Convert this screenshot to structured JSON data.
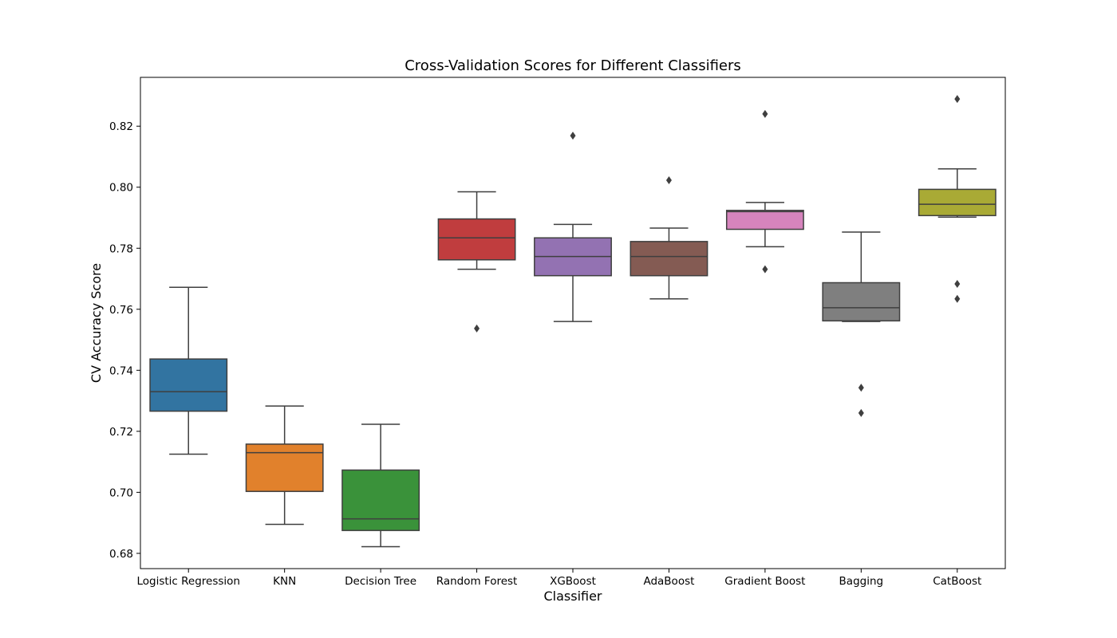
{
  "chart_data": {
    "type": "box",
    "title": "Cross-Validation Scores for Different Classifiers",
    "xlabel": "Classifier",
    "ylabel": "CV Accuracy Score",
    "ylim": [
      0.675,
      0.836
    ],
    "yticks": [
      "0.68",
      "0.70",
      "0.72",
      "0.74",
      "0.76",
      "0.78",
      "0.80",
      "0.82"
    ],
    "grid": false,
    "categories": [
      "Logistic Regression",
      "KNN",
      "Decision Tree",
      "Random Forest",
      "XGBoost",
      "AdaBoost",
      "Gradient Boost",
      "Bagging",
      "CatBoost"
    ],
    "series": [
      {
        "whisker_low": 0.7125,
        "q1": 0.7266,
        "median": 0.733,
        "q3": 0.7437,
        "whisker_high": 0.7672,
        "outliers": [],
        "color": "#3274a1"
      },
      {
        "whisker_low": 0.6895,
        "q1": 0.7003,
        "median": 0.713,
        "q3": 0.7158,
        "whisker_high": 0.7283,
        "outliers": [],
        "color": "#e1812c"
      },
      {
        "whisker_low": 0.6822,
        "q1": 0.6875,
        "median": 0.6913,
        "q3": 0.7073,
        "whisker_high": 0.7223,
        "outliers": [],
        "color": "#3a923a"
      },
      {
        "whisker_low": 0.7731,
        "q1": 0.7762,
        "median": 0.7834,
        "q3": 0.7896,
        "whisker_high": 0.7985,
        "outliers": [
          0.7537
        ],
        "color": "#c03d3e"
      },
      {
        "whisker_low": 0.756,
        "q1": 0.771,
        "median": 0.7773,
        "q3": 0.7834,
        "whisker_high": 0.7878,
        "outliers": [
          0.8169
        ],
        "color": "#9372b2"
      },
      {
        "whisker_low": 0.7634,
        "q1": 0.771,
        "median": 0.7773,
        "q3": 0.7822,
        "whisker_high": 0.7866,
        "outliers": [
          0.8023
        ],
        "color": "#845b53"
      },
      {
        "whisker_low": 0.7805,
        "q1": 0.7862,
        "median": 0.792,
        "q3": 0.7924,
        "whisker_high": 0.795,
        "outliers": [
          0.824,
          0.7731
        ],
        "color": "#d684bd"
      },
      {
        "whisker_low": 0.756,
        "q1": 0.7562,
        "median": 0.7605,
        "q3": 0.7687,
        "whisker_high": 0.7853,
        "outliers": [
          0.7343,
          0.726
        ],
        "color": "#7f7f7f"
      },
      {
        "whisker_low": 0.7902,
        "q1": 0.7907,
        "median": 0.7944,
        "q3": 0.7993,
        "whisker_high": 0.806,
        "outliers": [
          0.8289,
          0.7683,
          0.7634
        ],
        "color": "#a9aa35"
      }
    ]
  }
}
